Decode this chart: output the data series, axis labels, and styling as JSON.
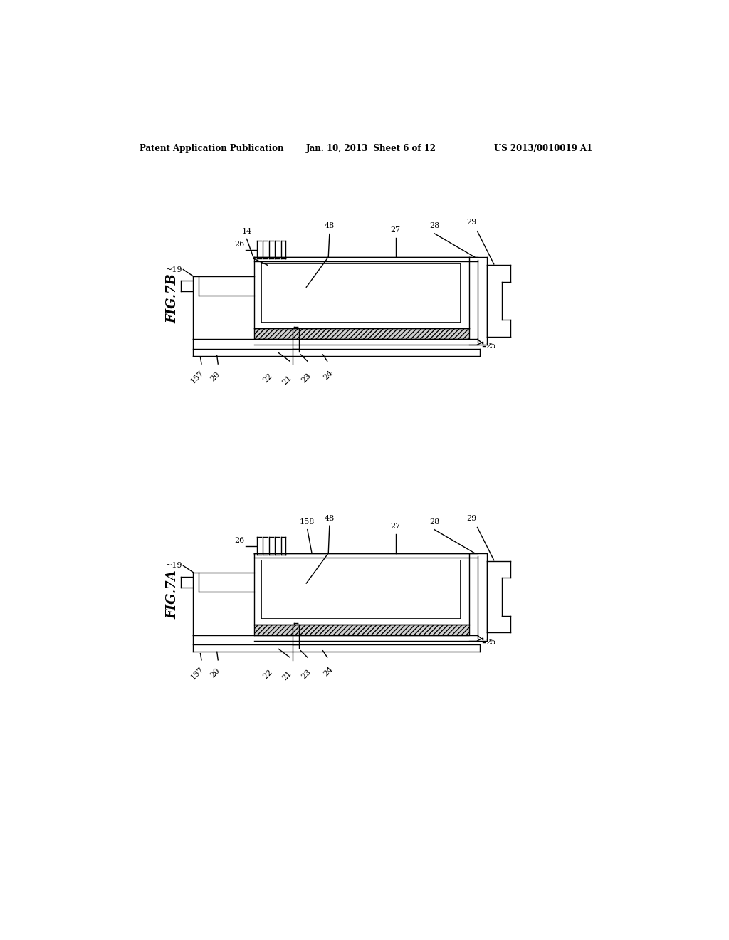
{
  "background_color": "#ffffff",
  "header_left": "Patent Application Publication",
  "header_center": "Jan. 10, 2013  Sheet 6 of 12",
  "header_right": "US 2013/0010019 A1",
  "fig7b_label": "FIG.7B",
  "fig7a_label": "FIG.7A"
}
